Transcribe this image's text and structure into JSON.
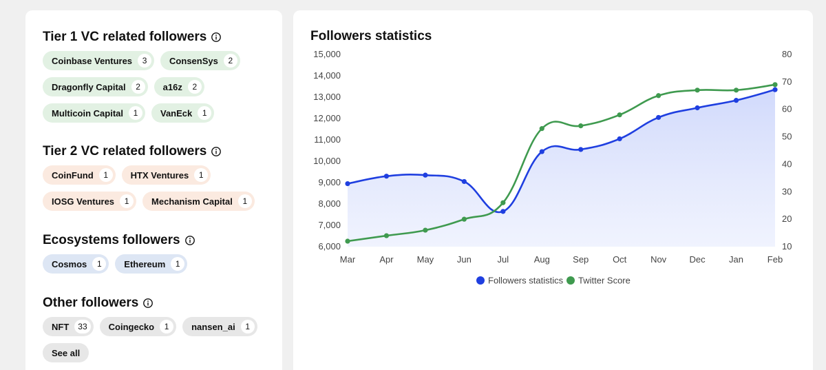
{
  "tier1": {
    "title": "Tier 1 VC related followers",
    "rows": [
      [
        {
          "name": "Coinbase Ventures",
          "count": "3"
        },
        {
          "name": "ConsenSys",
          "count": "2"
        }
      ],
      [
        {
          "name": "Dragonfly Capital",
          "count": "2"
        },
        {
          "name": "a16z",
          "count": "2"
        }
      ],
      [
        {
          "name": "Multicoin Capital",
          "count": "1"
        },
        {
          "name": "VanEck",
          "count": "1"
        }
      ]
    ]
  },
  "tier2": {
    "title": "Tier 2 VC related followers",
    "rows": [
      [
        {
          "name": "CoinFund",
          "count": "1"
        },
        {
          "name": "HTX Ventures",
          "count": "1"
        }
      ],
      [
        {
          "name": "IOSG Ventures",
          "count": "1"
        },
        {
          "name": "Mechanism Capital",
          "count": "1"
        }
      ]
    ]
  },
  "ecosystems": {
    "title": "Ecosystems followers",
    "rows": [
      [
        {
          "name": "Cosmos",
          "count": "1"
        },
        {
          "name": "Ethereum",
          "count": "1"
        }
      ]
    ]
  },
  "other": {
    "title": "Other followers",
    "rows": [
      [
        {
          "name": "NFT",
          "count": "33"
        },
        {
          "name": "Coingecko",
          "count": "1"
        },
        {
          "name": "nansen_ai",
          "count": "1"
        }
      ]
    ],
    "see_all_label": "See all"
  },
  "icons": {
    "info": "info-icon"
  },
  "chart_data": {
    "type": "line",
    "title": "Followers statistics",
    "categories": [
      "Mar",
      "Apr",
      "May",
      "Jun",
      "Jul",
      "Aug",
      "Sep",
      "Oct",
      "Nov",
      "Dec",
      "Jan",
      "Feb"
    ],
    "left_axis": {
      "ylim": [
        6000,
        15000
      ],
      "ticks": [
        "6,000",
        "7,000",
        "8,000",
        "9,000",
        "10,000",
        "11,000",
        "12,000",
        "13,000",
        "14,000",
        "15,000"
      ]
    },
    "right_axis": {
      "ylim": [
        10,
        80
      ],
      "ticks": [
        "10",
        "20",
        "30",
        "40",
        "50",
        "60",
        "70",
        "80"
      ]
    },
    "series": [
      {
        "name": "Followers statistics",
        "axis": "left",
        "color": "#1f3fe0",
        "area": true,
        "values": [
          8950,
          9300,
          9350,
          9050,
          7650,
          10450,
          10550,
          11050,
          12050,
          12500,
          12850,
          13350
        ]
      },
      {
        "name": "Twitter Score",
        "axis": "right",
        "color": "#3f9a4f",
        "area": false,
        "values": [
          12,
          14,
          16,
          20,
          26,
          53,
          54,
          58,
          65,
          67,
          67,
          69
        ]
      }
    ],
    "legend_position": "bottom-center",
    "grid": false
  }
}
